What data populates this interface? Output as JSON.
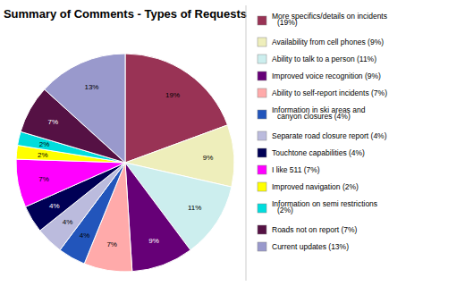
{
  "chart_data": {
    "type": "pie",
    "title": "Summary of Comments - Types of Requests",
    "categories": [
      "More specifics/details on incidents\n(19%)",
      "Availability from cell phones (9%)",
      "Ability to talk to a person (11%)",
      "Improved voice recognition (9%)",
      "Ability to self-report incidents (7%)",
      "Information in ski areas and\ncanyon closures (4%)",
      "Separate road closure report (4%)",
      "Touchtone capabilities (4%)",
      "I like 511 (7%)",
      "Improved navigation (2%)",
      "Information on semi restrictions\n(2%)",
      "Roads not on report (7%)",
      "Current updates (13%)"
    ],
    "values": [
      19,
      9,
      11,
      9,
      7,
      4,
      4,
      4,
      7,
      2,
      2,
      7,
      13
    ],
    "value_labels": [
      "19%",
      "9%",
      "11%",
      "9%",
      "7%",
      "4%",
      "4%",
      "4%",
      "7%",
      "2%",
      "2%",
      "7%",
      "13%"
    ],
    "colors": [
      "#993355",
      "#EEEEBB",
      "#CCEEEE",
      "#660077",
      "#FFAAAA",
      "#2255BB",
      "#BBBBDD",
      "#000055",
      "#FF00FF",
      "#FFFF00",
      "#00DDDD",
      "#551144",
      "#9999CC"
    ],
    "data_labels": true
  }
}
